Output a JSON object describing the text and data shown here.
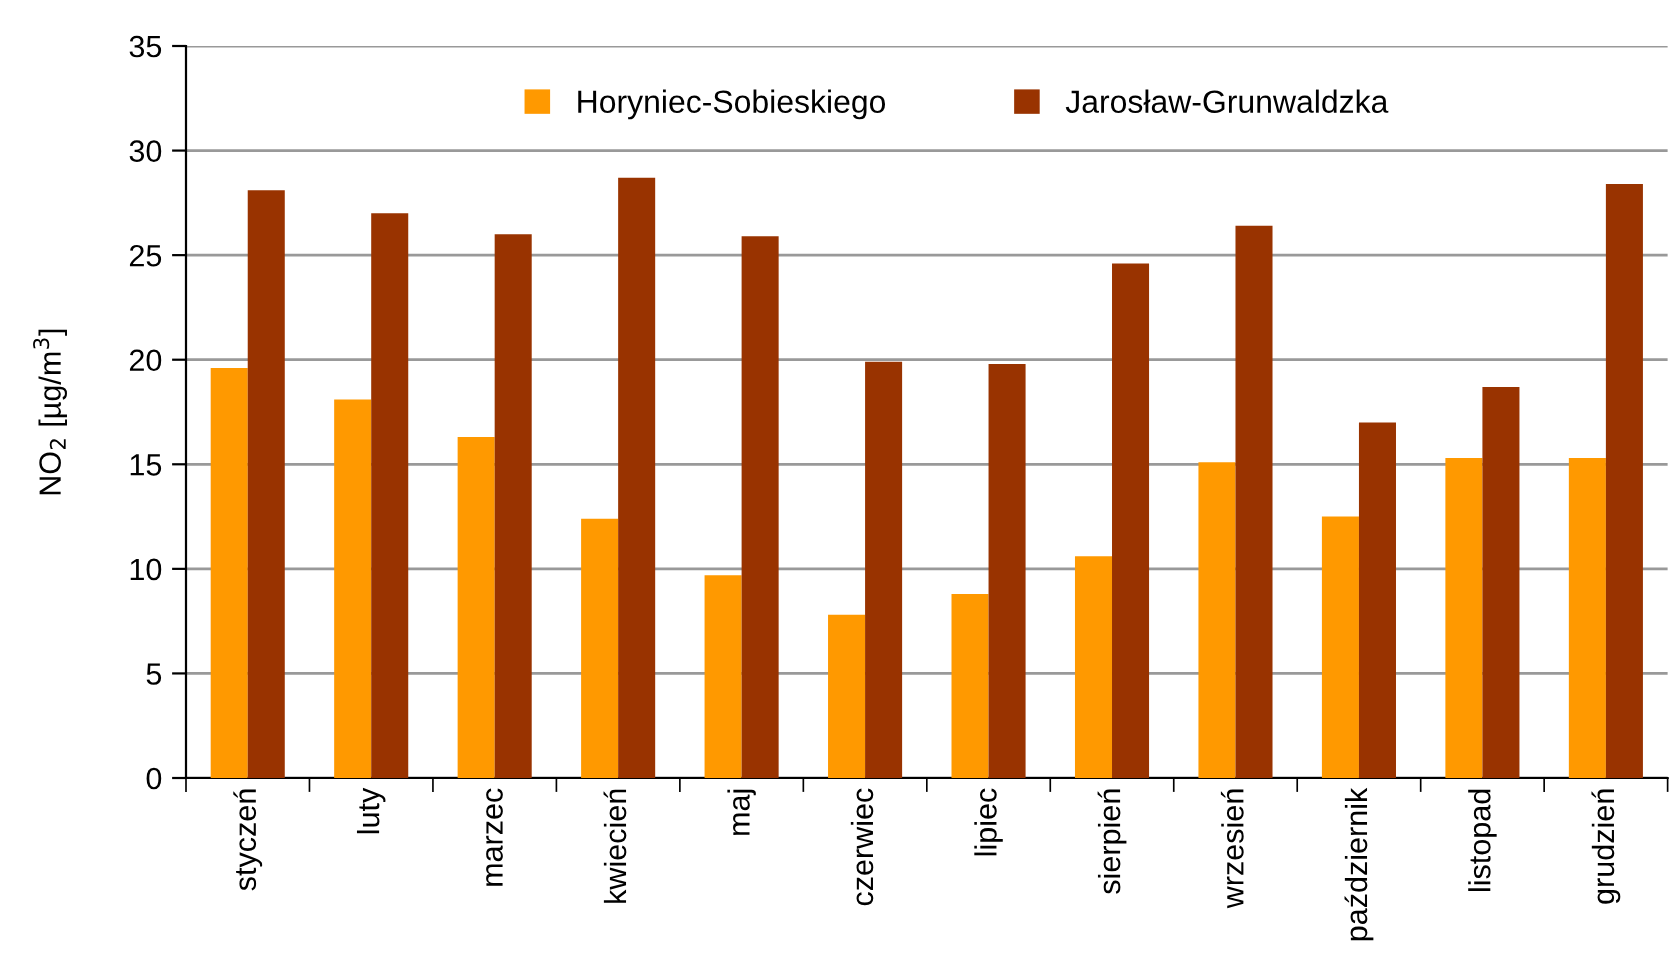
{
  "chart_data": {
    "type": "bar",
    "ylabel": "NO$_{2}$ [µg/m$^{3}$]",
    "categories": [
      "styczeń",
      "luty",
      "marzec",
      "kwiecień",
      "maj",
      "czerwiec",
      "lipiec",
      "sierpień",
      "wrzesień",
      "październik",
      "listopad",
      "grudzień"
    ],
    "series": [
      {
        "name": "Horyniec-Sobieskiego",
        "color": "#ff9900",
        "values": [
          19.6,
          18.1,
          16.3,
          12.4,
          9.7,
          7.8,
          8.8,
          10.6,
          15.1,
          12.5,
          15.3,
          15.3
        ]
      },
      {
        "name": "Jarosław-Grunwaldzka",
        "color": "#993300",
        "values": [
          28.1,
          27.0,
          26.0,
          28.7,
          25.9,
          19.9,
          19.8,
          24.6,
          26.4,
          17.0,
          18.7,
          28.4
        ]
      }
    ],
    "ylim": [
      0,
      35
    ],
    "yticks": [
      0,
      5,
      10,
      15,
      20,
      25,
      30,
      35
    ],
    "grid": "y",
    "legend": "top"
  }
}
